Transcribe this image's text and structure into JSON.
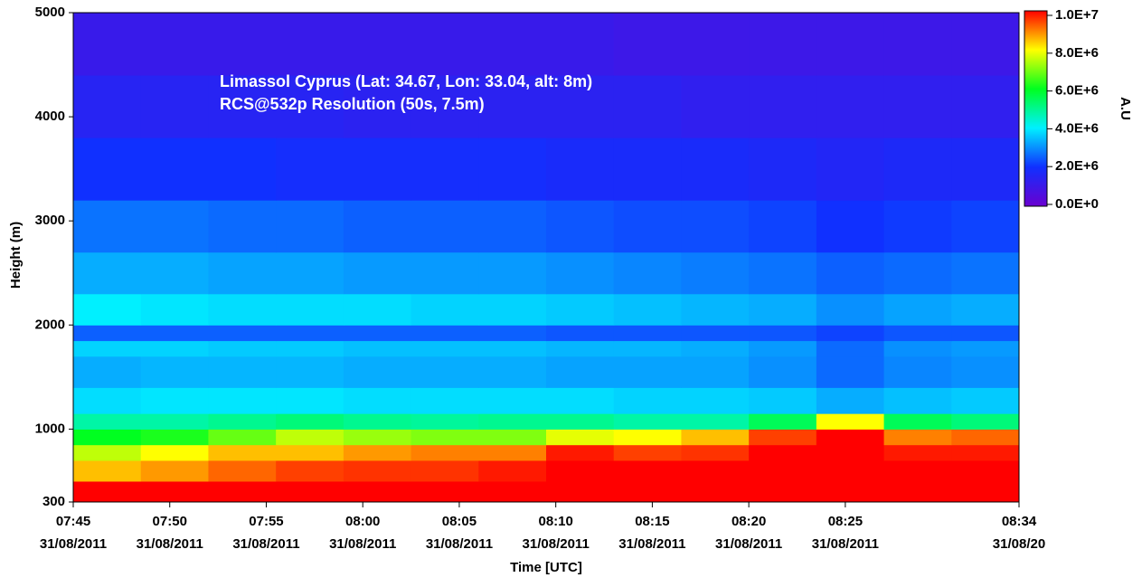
{
  "chart_data": {
    "type": "heatmap",
    "annotations": [
      "Limassol Cyprus (Lat: 34.67, Lon: 33.04, alt: 8m)",
      "RCS@532p Resolution (50s, 7.5m)"
    ],
    "x_label": "Time [UTC]",
    "y_label": "Height (m)",
    "colorbar_label": "A.U",
    "xlim": [
      "07:45:00",
      "08:34:00"
    ],
    "xticks": [
      {
        "value": "07:45:00",
        "label": [
          "07:45",
          "31/08/2011"
        ]
      },
      {
        "value": "07:50:00",
        "label": [
          "07:50",
          "31/08/2011"
        ]
      },
      {
        "value": "07:55:00",
        "label": [
          "07:55",
          "31/08/2011"
        ]
      },
      {
        "value": "08:00:00",
        "label": [
          "08:00",
          "31/08/2011"
        ]
      },
      {
        "value": "08:05:00",
        "label": [
          "08:05",
          "31/08/2011"
        ]
      },
      {
        "value": "08:10:00",
        "label": [
          "08:10",
          "31/08/2011"
        ]
      },
      {
        "value": "08:15:00",
        "label": [
          "08:15",
          "31/08/2011"
        ]
      },
      {
        "value": "08:20:00",
        "label": [
          "08:20",
          "31/08/2011"
        ]
      },
      {
        "value": "08:25:00",
        "label": [
          "08:25",
          "31/08/2011"
        ]
      },
      {
        "value": "08:34:00",
        "label": [
          "08:34",
          "31/08/20"
        ]
      }
    ],
    "ylim": [
      300,
      5000
    ],
    "yticks": [
      300,
      1000,
      2000,
      3000,
      4000,
      5000
    ],
    "clim": [
      0,
      10000000
    ],
    "cticks": [
      {
        "value": 0,
        "label": "0.0E+0"
      },
      {
        "value": 2000000,
        "label": "2.0E+6"
      },
      {
        "value": 4000000,
        "label": "4.0E+6"
      },
      {
        "value": 6000000,
        "label": "6.0E+6"
      },
      {
        "value": 8000000,
        "label": "8.0E+6"
      },
      {
        "value": 10000000,
        "label": "1.0E+7"
      }
    ],
    "colormap": [
      "#6a00d0",
      "#1030ff",
      "#00f0ff",
      "#00ff20",
      "#ffff00",
      "#ff0000"
    ],
    "x_bins": [
      "07:45:00",
      "07:48:30",
      "07:52:00",
      "07:55:30",
      "07:59:00",
      "08:02:30",
      "08:06:00",
      "08:09:30",
      "08:13:00",
      "08:16:30",
      "08:20:00",
      "08:23:30",
      "08:27:00",
      "08:30:30",
      "08:34:00"
    ],
    "y_bins": [
      300,
      500,
      700,
      850,
      1000,
      1150,
      1400,
      1700,
      1850,
      2000,
      2300,
      2700,
      3200,
      3800,
      4400,
      5000
    ],
    "values": [
      [
        10000000,
        10000000,
        10000000,
        10000000,
        10000000,
        10000000,
        10000000,
        10000000,
        10000000,
        10000000,
        10000000,
        10000000,
        10000000,
        10000000
      ],
      [
        8500000,
        8800000,
        9200000,
        9500000,
        9600000,
        9600000,
        9800000,
        10000000,
        10000000,
        10000000,
        10000000,
        10000000,
        10000000,
        10000000
      ],
      [
        7500000,
        8000000,
        8500000,
        8500000,
        8800000,
        9000000,
        9000000,
        9800000,
        9500000,
        9600000,
        10000000,
        10000000,
        9800000,
        9800000
      ],
      [
        6000000,
        6200000,
        6800000,
        7500000,
        7200000,
        7000000,
        7000000,
        7800000,
        8000000,
        8500000,
        9500000,
        10000000,
        9000000,
        9200000
      ],
      [
        4800000,
        4800000,
        5000000,
        5200000,
        5000000,
        4900000,
        5000000,
        5000000,
        4800000,
        4800000,
        5500000,
        8000000,
        5500000,
        5200000
      ],
      [
        3800000,
        3900000,
        3900000,
        3900000,
        3800000,
        3800000,
        3800000,
        3800000,
        3700000,
        3700000,
        3600000,
        3300000,
        3500000,
        3600000
      ],
      [
        3300000,
        3400000,
        3400000,
        3400000,
        3300000,
        3300000,
        3300000,
        3200000,
        3200000,
        3200000,
        3000000,
        2600000,
        2900000,
        3000000
      ],
      [
        3700000,
        3700000,
        3600000,
        3600000,
        3500000,
        3500000,
        3500000,
        3400000,
        3400000,
        3300000,
        3100000,
        2600000,
        3000000,
        3100000
      ],
      [
        2500000,
        2500000,
        2500000,
        2500000,
        2500000,
        2500000,
        2500000,
        2400000,
        2400000,
        2400000,
        2400000,
        2200000,
        2400000,
        2400000
      ],
      [
        4000000,
        3900000,
        3800000,
        3800000,
        3800000,
        3700000,
        3700000,
        3600000,
        3500000,
        3400000,
        3300000,
        3000000,
        3200000,
        3300000
      ],
      [
        3300000,
        3300000,
        3200000,
        3200000,
        3100000,
        3100000,
        3100000,
        3000000,
        2900000,
        2800000,
        2700000,
        2500000,
        2600000,
        2700000
      ],
      [
        2700000,
        2700000,
        2600000,
        2600000,
        2500000,
        2500000,
        2500000,
        2400000,
        2300000,
        2300000,
        2200000,
        2000000,
        2100000,
        2200000
      ],
      [
        2000000,
        2000000,
        2000000,
        1900000,
        1900000,
        1900000,
        1900000,
        1800000,
        1800000,
        1800000,
        1700000,
        1600000,
        1700000,
        1700000
      ],
      [
        1500000,
        1500000,
        1500000,
        1500000,
        1400000,
        1400000,
        1400000,
        1400000,
        1400000,
        1300000,
        1300000,
        1300000,
        1300000,
        1300000
      ],
      [
        1100000,
        1100000,
        1100000,
        1100000,
        1100000,
        1100000,
        1100000,
        1100000,
        1000000,
        1000000,
        1000000,
        1000000,
        1000000,
        1000000
      ]
    ]
  }
}
